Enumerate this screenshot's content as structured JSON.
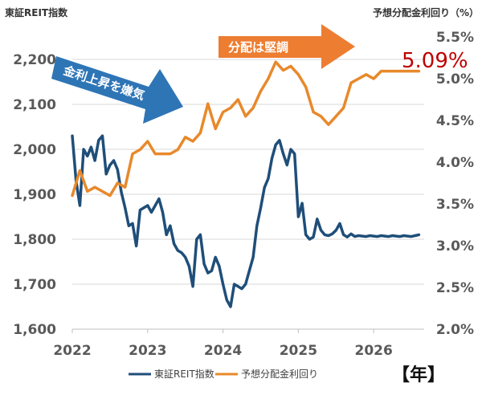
{
  "chart_data": {
    "type": "line",
    "left_axis_title": "東証REIT指数",
    "right_axis_title": "予想分配金利回り（%）",
    "x_range": [
      2022.0,
      2026.67
    ],
    "x_ticks": [
      "2022",
      "2023",
      "2024",
      "2025",
      "2026"
    ],
    "y_left_range": [
      1600,
      2250
    ],
    "y_left_ticks": [
      "1,600",
      "1,700",
      "1,800",
      "1,900",
      "2,000",
      "2,100",
      "2,200"
    ],
    "y_right_range": [
      2.0,
      5.5
    ],
    "y_right_ticks": [
      "2.0%",
      "2.5%",
      "3.0%",
      "3.5%",
      "4.0%",
      "4.5%",
      "5.0%",
      "5.5%"
    ],
    "grid": "horizontal",
    "legend": "bottom",
    "series": [
      {
        "name": "東証REIT指数",
        "axis": "left",
        "color": "#1f4e79",
        "x": [
          2022.0,
          2022.05,
          2022.1,
          2022.15,
          2022.2,
          2022.25,
          2022.3,
          2022.35,
          2022.4,
          2022.45,
          2022.5,
          2022.55,
          2022.6,
          2022.65,
          2022.7,
          2022.75,
          2022.8,
          2022.85,
          2022.9,
          2022.95,
          2023.0,
          2023.05,
          2023.1,
          2023.15,
          2023.2,
          2023.25,
          2023.3,
          2023.35,
          2023.4,
          2023.45,
          2023.5,
          2023.55,
          2023.6,
          2023.65,
          2023.7,
          2023.75,
          2023.8,
          2023.85,
          2023.9,
          2023.95,
          2024.0,
          2024.05,
          2024.1,
          2024.15,
          2024.2,
          2024.25,
          2024.3,
          2024.35,
          2024.4,
          2024.45,
          2024.5,
          2024.55,
          2024.6,
          2024.65,
          2024.7,
          2024.75,
          2024.8,
          2024.85,
          2024.9,
          2024.95,
          2025.0,
          2025.05,
          2025.1,
          2025.15,
          2025.2,
          2025.25,
          2025.3,
          2025.35,
          2025.4,
          2025.45,
          2025.5,
          2025.55,
          2025.6,
          2025.65,
          2025.7,
          2025.75,
          2025.8,
          2025.85,
          2025.9,
          2025.95,
          2026.0,
          2026.05,
          2026.1,
          2026.15,
          2026.2,
          2026.25,
          2026.3,
          2026.35,
          2026.4,
          2026.45,
          2026.5,
          2026.55,
          2026.6
        ],
        "values": [
          2030,
          1930,
          1875,
          2000,
          1985,
          2005,
          1975,
          2020,
          2030,
          1945,
          1965,
          1975,
          1955,
          1905,
          1870,
          1830,
          1835,
          1785,
          1865,
          1870,
          1875,
          1860,
          1875,
          1890,
          1860,
          1810,
          1830,
          1790,
          1775,
          1770,
          1760,
          1740,
          1695,
          1800,
          1810,
          1745,
          1725,
          1730,
          1760,
          1740,
          1700,
          1665,
          1650,
          1700,
          1695,
          1690,
          1700,
          1730,
          1760,
          1830,
          1870,
          1915,
          1935,
          1980,
          2010,
          2020,
          1990,
          1965,
          2000,
          1990,
          1850,
          1880,
          1810,
          1800,
          1805,
          1845,
          1820,
          1810,
          1808,
          1812,
          1820,
          1835,
          1810,
          1805,
          1812,
          1806,
          1808,
          1807,
          1806,
          1808,
          1807,
          1806,
          1808,
          1807,
          1806,
          1808,
          1807,
          1806,
          1808,
          1807,
          1806,
          1808,
          1810
        ]
      },
      {
        "name": "予想分配金利回り",
        "axis": "right",
        "color": "#e8892b",
        "x": [
          2022.0,
          2022.1,
          2022.2,
          2022.3,
          2022.4,
          2022.5,
          2022.6,
          2022.7,
          2022.8,
          2022.9,
          2023.0,
          2023.1,
          2023.2,
          2023.3,
          2023.4,
          2023.5,
          2023.6,
          2023.7,
          2023.8,
          2023.9,
          2024.0,
          2024.1,
          2024.2,
          2024.3,
          2024.4,
          2024.5,
          2024.6,
          2024.7,
          2024.8,
          2024.9,
          2025.0,
          2025.1,
          2025.2,
          2025.3,
          2025.4,
          2025.5,
          2025.6,
          2025.7,
          2025.8,
          2025.9,
          2026.0,
          2026.1,
          2026.2,
          2026.3,
          2026.4,
          2026.5,
          2026.6
        ],
        "values": [
          3.6,
          3.9,
          3.65,
          3.7,
          3.65,
          3.6,
          3.75,
          3.7,
          4.1,
          4.15,
          4.25,
          4.1,
          4.1,
          4.1,
          4.15,
          4.3,
          4.25,
          4.35,
          4.7,
          4.4,
          4.6,
          4.65,
          4.75,
          4.55,
          4.65,
          4.85,
          5.0,
          5.2,
          5.1,
          5.15,
          5.05,
          4.9,
          4.6,
          4.55,
          4.45,
          4.55,
          4.65,
          4.95,
          5.0,
          5.05,
          5.0,
          5.09,
          5.09,
          5.09,
          5.09,
          5.09,
          5.09
        ]
      }
    ],
    "annotations": [
      {
        "id": "arrow_blue",
        "text": "金利上昇を嫌気",
        "color": "#2e75b6"
      },
      {
        "id": "arrow_orange",
        "text": "分配は堅調",
        "color": "#ed7d31"
      },
      {
        "id": "callout",
        "text": "5.09%",
        "color": "#c00000"
      },
      {
        "id": "year_tag",
        "text": "【年】"
      }
    ]
  }
}
